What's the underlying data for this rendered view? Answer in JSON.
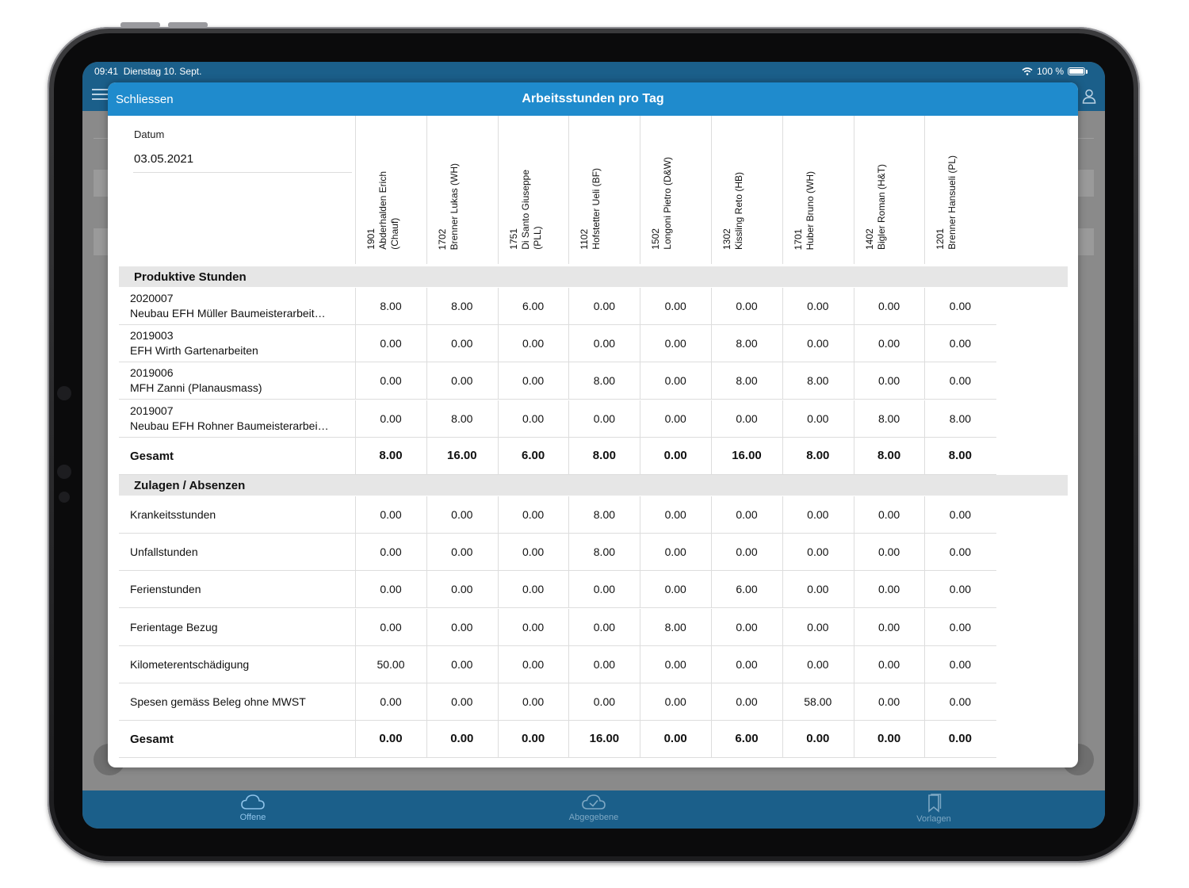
{
  "status_bar": {
    "time": "09:41",
    "date": "Dienstag 10. Sept.",
    "battery": "100 %"
  },
  "modal": {
    "close_label": "Schliessen",
    "title": "Arbeitsstunden pro Tag"
  },
  "date_field": {
    "label": "Datum",
    "value": "03.05.2021"
  },
  "employees": [
    {
      "line1": "1901",
      "line2": "Abderhalden Erich",
      "line3": "(Chauf)"
    },
    {
      "line1": "1702",
      "line2": "Brenner Lukas (WH)",
      "line3": ""
    },
    {
      "line1": "1751",
      "line2": "Di Santo Giuseppe",
      "line3": "(PLL)"
    },
    {
      "line1": "1102",
      "line2": "Hofstetter Ueli (BF)",
      "line3": ""
    },
    {
      "line1": "1502",
      "line2": "Longoni Pietro (D&W)",
      "line3": ""
    },
    {
      "line1": "1302",
      "line2": "Kissling Reto (HB)",
      "line3": ""
    },
    {
      "line1": "1701",
      "line2": "Huber Bruno (WH)",
      "line3": ""
    },
    {
      "line1": "1402",
      "line2": "Bigler Roman (H&T)",
      "line3": ""
    },
    {
      "line1": "1201",
      "line2": "Brenner Hansueli (PL)",
      "line3": ""
    }
  ],
  "sections": [
    {
      "title": "Produktive Stunden",
      "rows": [
        {
          "code": "2020007",
          "label": "Neubau EFH Müller Baumeisterarbeit…",
          "values": [
            "8.00",
            "8.00",
            "6.00",
            "0.00",
            "0.00",
            "0.00",
            "0.00",
            "0.00",
            "0.00"
          ]
        },
        {
          "code": "2019003",
          "label": "EFH Wirth Gartenarbeiten",
          "values": [
            "0.00",
            "0.00",
            "0.00",
            "0.00",
            "0.00",
            "8.00",
            "0.00",
            "0.00",
            "0.00"
          ]
        },
        {
          "code": "2019006",
          "label": "MFH Zanni (Planausmass)",
          "values": [
            "0.00",
            "0.00",
            "0.00",
            "8.00",
            "0.00",
            "8.00",
            "8.00",
            "0.00",
            "0.00"
          ]
        },
        {
          "code": "2019007",
          "label": "Neubau EFH Rohner Baumeisterarbei…",
          "values": [
            "0.00",
            "8.00",
            "0.00",
            "0.00",
            "0.00",
            "0.00",
            "0.00",
            "8.00",
            "8.00"
          ]
        }
      ],
      "total": {
        "label": "Gesamt",
        "values": [
          "8.00",
          "16.00",
          "6.00",
          "8.00",
          "0.00",
          "16.00",
          "8.00",
          "8.00",
          "8.00"
        ]
      }
    },
    {
      "title": "Zulagen / Absenzen",
      "rows": [
        {
          "code": "",
          "label": "Krankeitsstunden",
          "values": [
            "0.00",
            "0.00",
            "0.00",
            "8.00",
            "0.00",
            "0.00",
            "0.00",
            "0.00",
            "0.00"
          ]
        },
        {
          "code": "",
          "label": "Unfallstunden",
          "values": [
            "0.00",
            "0.00",
            "0.00",
            "8.00",
            "0.00",
            "0.00",
            "0.00",
            "0.00",
            "0.00"
          ]
        },
        {
          "code": "",
          "label": "Ferienstunden",
          "values": [
            "0.00",
            "0.00",
            "0.00",
            "0.00",
            "0.00",
            "6.00",
            "0.00",
            "0.00",
            "0.00"
          ]
        },
        {
          "code": "",
          "label": "Ferientage Bezug",
          "values": [
            "0.00",
            "0.00",
            "0.00",
            "0.00",
            "8.00",
            "0.00",
            "0.00",
            "0.00",
            "0.00"
          ]
        },
        {
          "code": "",
          "label": "Kilometerentschädigung",
          "values": [
            "50.00",
            "0.00",
            "0.00",
            "0.00",
            "0.00",
            "0.00",
            "0.00",
            "0.00",
            "0.00"
          ]
        },
        {
          "code": "",
          "label": "Spesen gemäss Beleg ohne MWST",
          "values": [
            "0.00",
            "0.00",
            "0.00",
            "0.00",
            "0.00",
            "0.00",
            "58.00",
            "0.00",
            "0.00"
          ]
        }
      ],
      "total": {
        "label": "Gesamt",
        "values": [
          "0.00",
          "0.00",
          "0.00",
          "16.00",
          "0.00",
          "6.00",
          "0.00",
          "0.00",
          "0.00"
        ]
      }
    }
  ],
  "tab_bar": {
    "items": [
      {
        "label": "Offene",
        "icon": "cloud-icon",
        "active": true
      },
      {
        "label": "Abgegebene",
        "icon": "cloud-check-icon",
        "active": false
      },
      {
        "label": "Vorlagen",
        "icon": "bookmarks-icon",
        "active": false
      }
    ]
  },
  "colors": {
    "header_blue": "#1f8bcd",
    "app_bar": "#1b5f8a",
    "section_bg": "#e6e6e6",
    "grid_line": "#dddddd"
  }
}
